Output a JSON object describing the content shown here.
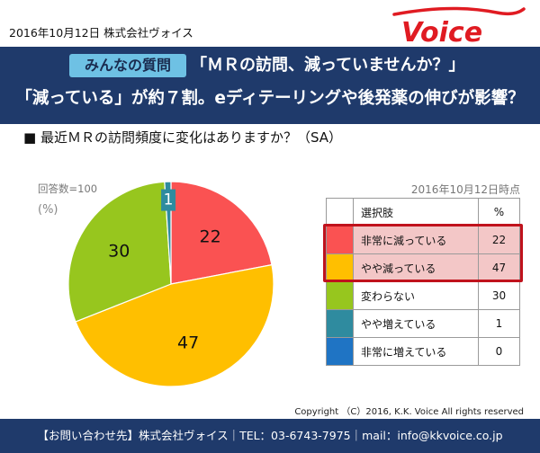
{
  "header": {
    "date_company": "2016年10月12日 株式会社ヴォイス",
    "logo_text": "Voice"
  },
  "headline": {
    "tag": "みんなの質問",
    "question": "「ＭＲの訪問、減っていませんか？」",
    "main": "「減っている」が約７割。eディテーリングや後発薬の伸びが影響？"
  },
  "survey": {
    "question": "■ 最近ＭＲの訪問頻度に変化はありますか？（SA）",
    "respondents": "回答数=100",
    "unit": "(%)"
  },
  "table": {
    "note": "2016年10月12日時点",
    "header_label": "選択肢",
    "header_value": "%"
  },
  "colors": {
    "red": "#fa5252",
    "orange": "#ffbf00",
    "green": "#97c61e",
    "teal": "#2f8b9f",
    "blue": "#1f74c4",
    "highlight_bg": "#f3c7c7",
    "highlight_border": "#c0121c",
    "navy": "#1f3a6b"
  },
  "chart_data": {
    "type": "pie",
    "categories": [
      "非常に減っている",
      "やや減っている",
      "変わらない",
      "やや増えている",
      "非常に増えている"
    ],
    "values": [
      22,
      47,
      30,
      1,
      0
    ],
    "colors": [
      "#fa5252",
      "#ffbf00",
      "#97c61e",
      "#2f8b9f",
      "#1f74c4"
    ],
    "highlighted": [
      0,
      1
    ],
    "start_angle_deg": 0,
    "direction": "clockwise"
  },
  "footer": {
    "copyright": "Copyright （C）2016, K.K. Voice All rights reserved",
    "contact": "【お問い合わせ先】株式会社ヴォイス｜TEL：03-6743-7975｜mail：info@kkvoice.co.jp"
  }
}
